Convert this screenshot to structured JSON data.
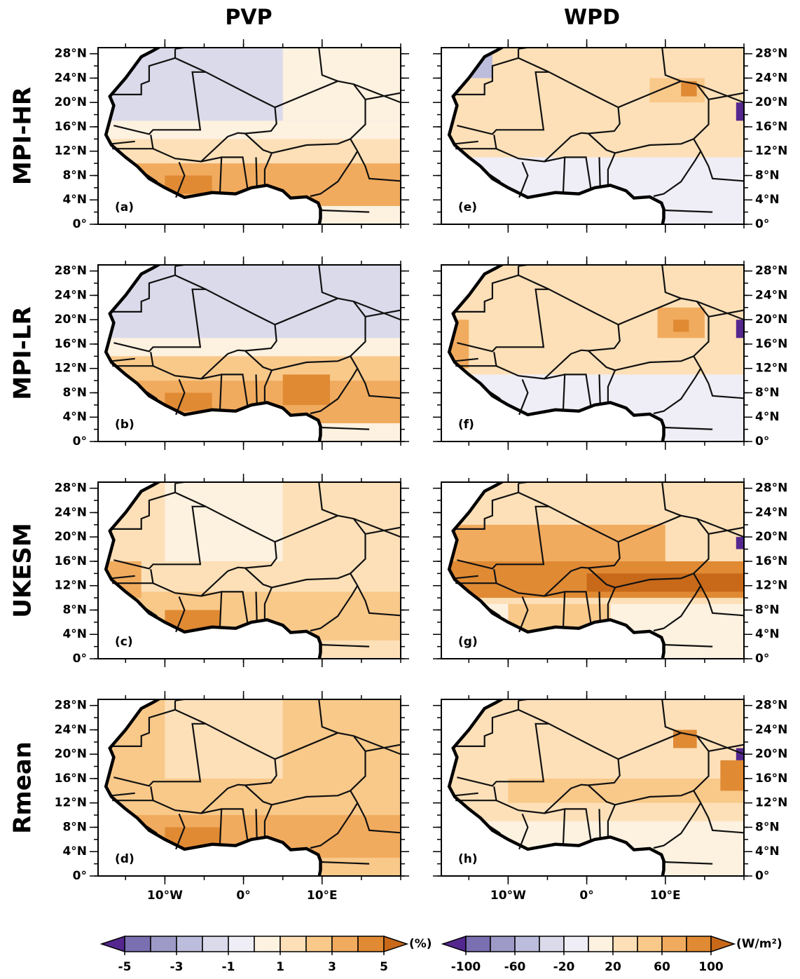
{
  "columns": [
    "PVP",
    "WPD"
  ],
  "rows": [
    "MPI-HR",
    "MPI-LR",
    "UKESM",
    "Rmean"
  ],
  "panel_labels": [
    "(a)",
    "(b)",
    "(c)",
    "(d)",
    "(e)",
    "(f)",
    "(g)",
    "(h)"
  ],
  "lon_range": [
    -18.5,
    20
  ],
  "lat_range": [
    0,
    29
  ],
  "lat_ticks": [
    {
      "value": 28,
      "label": "28°N"
    },
    {
      "value": 24,
      "label": "24°N"
    },
    {
      "value": 20,
      "label": "20°N"
    },
    {
      "value": 16,
      "label": "16°N"
    },
    {
      "value": 12,
      "label": "12°N"
    },
    {
      "value": 8,
      "label": "8°N"
    },
    {
      "value": 4,
      "label": "4°N"
    },
    {
      "value": 0,
      "label": "0°"
    }
  ],
  "lon_ticks": [
    {
      "value": -10,
      "label": "10°W"
    },
    {
      "value": 0,
      "label": "0°"
    },
    {
      "value": 10,
      "label": "10°E"
    }
  ],
  "colorbars": [
    {
      "unit": "(%)",
      "ticks": [
        -5,
        -3,
        -1,
        1,
        3,
        5
      ],
      "colors": [
        "#54278f",
        "#7a6fb0",
        "#9e9ac8",
        "#bcbddc",
        "#dadaeb",
        "#efedf5",
        "#fdf1e0",
        "#fde0b8",
        "#f9c98a",
        "#f1ab5e",
        "#e08a34",
        "#c8691a"
      ]
    },
    {
      "unit": "(W/m²)",
      "ticks": [
        -100,
        -60,
        -20,
        20,
        60,
        100
      ],
      "colors": [
        "#54278f",
        "#7a6fb0",
        "#9e9ac8",
        "#bcbddc",
        "#dadaeb",
        "#efedf5",
        "#fdf1e0",
        "#fde0b8",
        "#f9c98a",
        "#f1ab5e",
        "#e08a34",
        "#c8691a"
      ]
    }
  ]
}
